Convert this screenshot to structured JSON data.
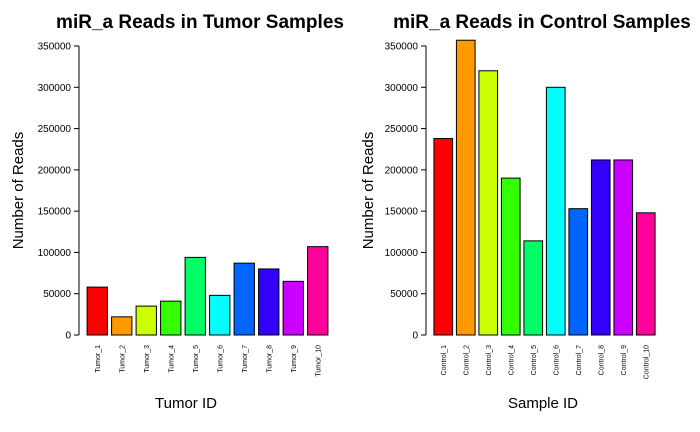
{
  "chart_data": [
    {
      "type": "bar",
      "title": "miR_a Reads in Tumor Samples",
      "xlabel": "Tumor ID",
      "ylabel": "Number of Reads",
      "ylim": [
        0,
        350000
      ],
      "yticks": [
        0,
        50000,
        100000,
        150000,
        200000,
        250000,
        300000,
        350000
      ],
      "categories": [
        "Tumor_1",
        "Tumor_2",
        "Tumor_3",
        "Tumor_4",
        "Tumor_5",
        "Tumor_6",
        "Tumor_7",
        "Tumor_8",
        "Tumor_9",
        "Tumor_10"
      ],
      "values": [
        58000,
        22000,
        35000,
        41000,
        94000,
        48000,
        87000,
        80000,
        65000,
        107000
      ],
      "colors": [
        "#FF0000",
        "#FF9900",
        "#CCFF00",
        "#33FF00",
        "#00FF66",
        "#00FFFF",
        "#0066FF",
        "#3300FF",
        "#CC00FF",
        "#FF0099"
      ],
      "grid": false,
      "legend": "none"
    },
    {
      "type": "bar",
      "title": "miR_a Reads in Control Samples",
      "xlabel": "Sample ID",
      "ylabel": "Number of Reads",
      "ylim": [
        0,
        350000
      ],
      "yticks": [
        0,
        50000,
        100000,
        150000,
        200000,
        250000,
        300000,
        350000
      ],
      "categories": [
        "Control_1",
        "Control_2",
        "Control_3",
        "Control_4",
        "Control_5",
        "Control_6",
        "Control_7",
        "Control_8",
        "Control_9",
        "Control_10"
      ],
      "values": [
        238000,
        357000,
        320000,
        190000,
        114000,
        300000,
        153000,
        212000,
        212000,
        148000
      ],
      "colors": [
        "#FF0000",
        "#FF9900",
        "#CCFF00",
        "#33FF00",
        "#00FF66",
        "#00FFFF",
        "#0066FF",
        "#3300FF",
        "#CC00FF",
        "#FF0099"
      ],
      "grid": false,
      "legend": "none"
    }
  ]
}
